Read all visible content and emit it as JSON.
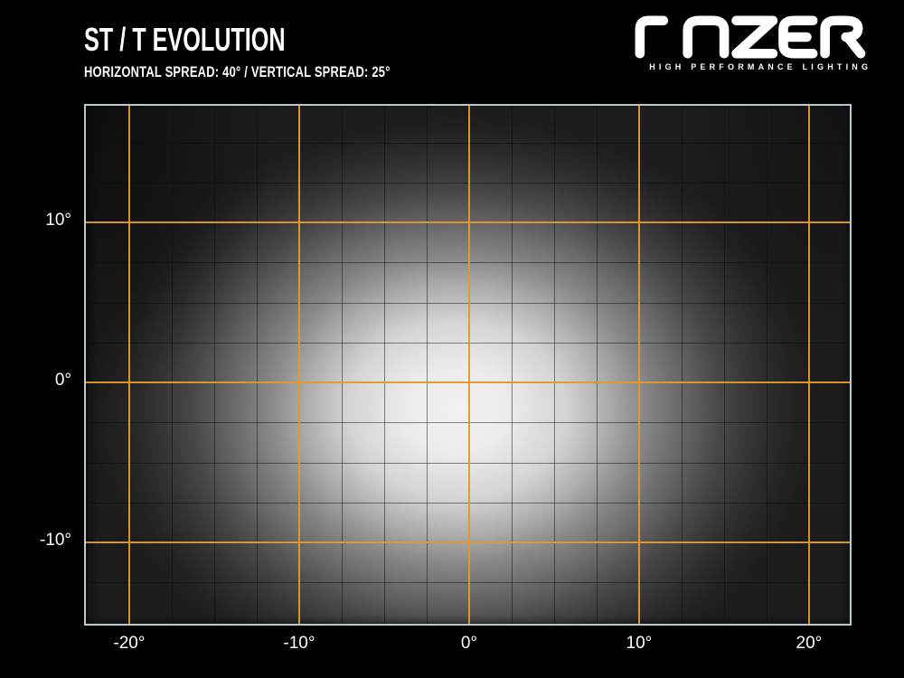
{
  "header": {
    "title": "ST / T EVOLUTION",
    "subtitle": "HORIZONTAL SPREAD: 40° / VERTICAL SPREAD: 25°",
    "brand": {
      "name": "LAZER",
      "tagline": "HIGH PERFORMANCE LIGHTING"
    }
  },
  "chart_data": {
    "type": "heatmap",
    "title": "ST / T EVOLUTION",
    "subtitle": "HORIZONTAL SPREAD: 40° / VERTICAL SPREAD: 25°",
    "legend": "none",
    "x_axis": {
      "unit": "degrees",
      "range": [
        -22.55,
        22.4
      ],
      "ticks": [
        -20,
        -10,
        0,
        10,
        20
      ],
      "tick_labels": [
        "-20°",
        "-10°",
        "0°",
        "10°",
        "20°"
      ]
    },
    "y_axis": {
      "unit": "degrees",
      "range": [
        -15.08,
        17.29
      ],
      "ticks": [
        10,
        0,
        -10
      ],
      "tick_labels": [
        "10°",
        "0°",
        "-10°"
      ]
    },
    "grid": {
      "minor_step_deg": 2.5,
      "major_step_deg": 10,
      "major_color": "#E09A2B",
      "minor_color": "rgba(8,10,12,0.48)",
      "border_color": "#BCC9CE"
    },
    "beam": {
      "horizontal_spread_deg": 40,
      "vertical_spread_deg": 25,
      "center_deg": {
        "x": -0.75,
        "y": -1.75
      },
      "radius_deg": {
        "x": 21.3,
        "y": 18.6
      },
      "gradient": [
        {
          "r": 0.0,
          "gray": 242
        },
        {
          "r": 0.15,
          "gray": 235
        },
        {
          "r": 0.3,
          "gray": 212
        },
        {
          "r": 0.42,
          "gray": 172
        },
        {
          "r": 0.52,
          "gray": 135
        },
        {
          "r": 0.63,
          "gray": 102
        },
        {
          "r": 0.73,
          "gray": 72
        },
        {
          "r": 0.83,
          "gray": 50
        },
        {
          "r": 0.93,
          "gray": 34
        },
        {
          "r": 1.0,
          "gray": 28
        }
      ]
    }
  }
}
